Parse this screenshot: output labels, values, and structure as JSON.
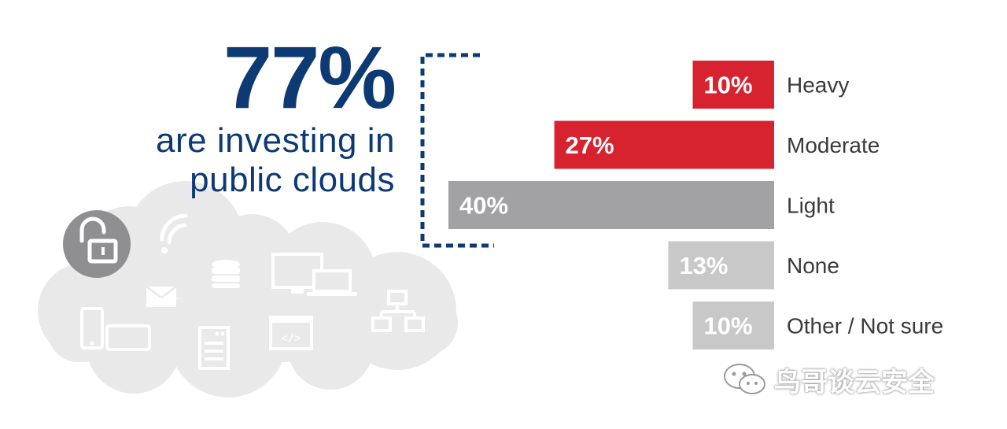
{
  "headline": {
    "stat": "77%",
    "line1": "are investing in",
    "line2": "public clouds"
  },
  "colors": {
    "navy": "#0e3a73",
    "red": "#d7222f",
    "dark_gray": "#a2a1a3",
    "light_gray": "#c8c8c9",
    "cloud": "#e9e9ea",
    "cloud_icons": "#ffffff",
    "lock_circle": "#8f8f91"
  },
  "icons": [
    "unlock-icon",
    "wifi-icon",
    "mail-icon",
    "database-icon",
    "monitor-icon",
    "laptop-icon",
    "phone-icon",
    "tablet-icon",
    "server-icon",
    "code-window-icon",
    "network-icon",
    "wechat-icon"
  ],
  "chart_data": {
    "type": "bar",
    "orientation": "horizontal",
    "categories": [
      "Heavy",
      "Moderate",
      "Light",
      "None",
      "Other / Not sure"
    ],
    "values": [
      10,
      27,
      40,
      13,
      10
    ],
    "value_labels": [
      "10%",
      "27%",
      "40%",
      "13%",
      "10%"
    ],
    "bar_colors": [
      "#d7222f",
      "#d7222f",
      "#a2a1a3",
      "#c8c8c9",
      "#c8c8c9"
    ],
    "bracket_groups": [
      "Heavy",
      "Moderate",
      "Light"
    ],
    "xlim": [
      0,
      40
    ],
    "grid": false
  },
  "watermark": {
    "text": "鸟哥谈云安全"
  }
}
